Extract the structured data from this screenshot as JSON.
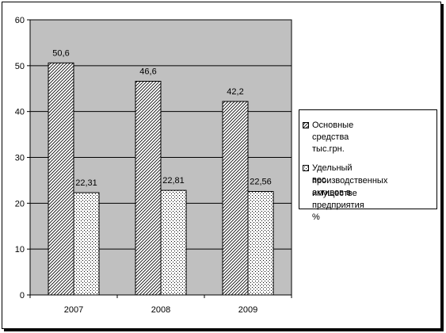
{
  "chart_data": {
    "type": "bar",
    "categories": [
      "2007",
      "2008",
      "2009"
    ],
    "series": [
      {
        "name": "Основные средства тыс.грн.",
        "values": [
          50.6,
          46.6,
          42.2
        ],
        "labels": [
          "50,6",
          "46,6",
          "42,2"
        ],
        "fill": "hatch-diagonal"
      },
      {
        "name": "Удельный вес производственных активов в имуществе предприятия %",
        "values": [
          22.31,
          22.81,
          22.56
        ],
        "labels": [
          "22,31",
          "22,81",
          "22,56"
        ],
        "fill": "dots"
      }
    ],
    "ylim": [
      0,
      60
    ],
    "yticks": [
      "0",
      "10",
      "20",
      "30",
      "40",
      "50",
      "60"
    ],
    "grid": true,
    "legend": "right",
    "plot_background": "#c0c0c0",
    "title": "",
    "xlabel": "",
    "ylabel": ""
  },
  "legend": {
    "item1": "Основные средства тыс.грн.",
    "item2_line1": "Удельный вес",
    "item2_line2": "производственных активов в",
    "item2_line3": "имуществе предприятия %"
  }
}
